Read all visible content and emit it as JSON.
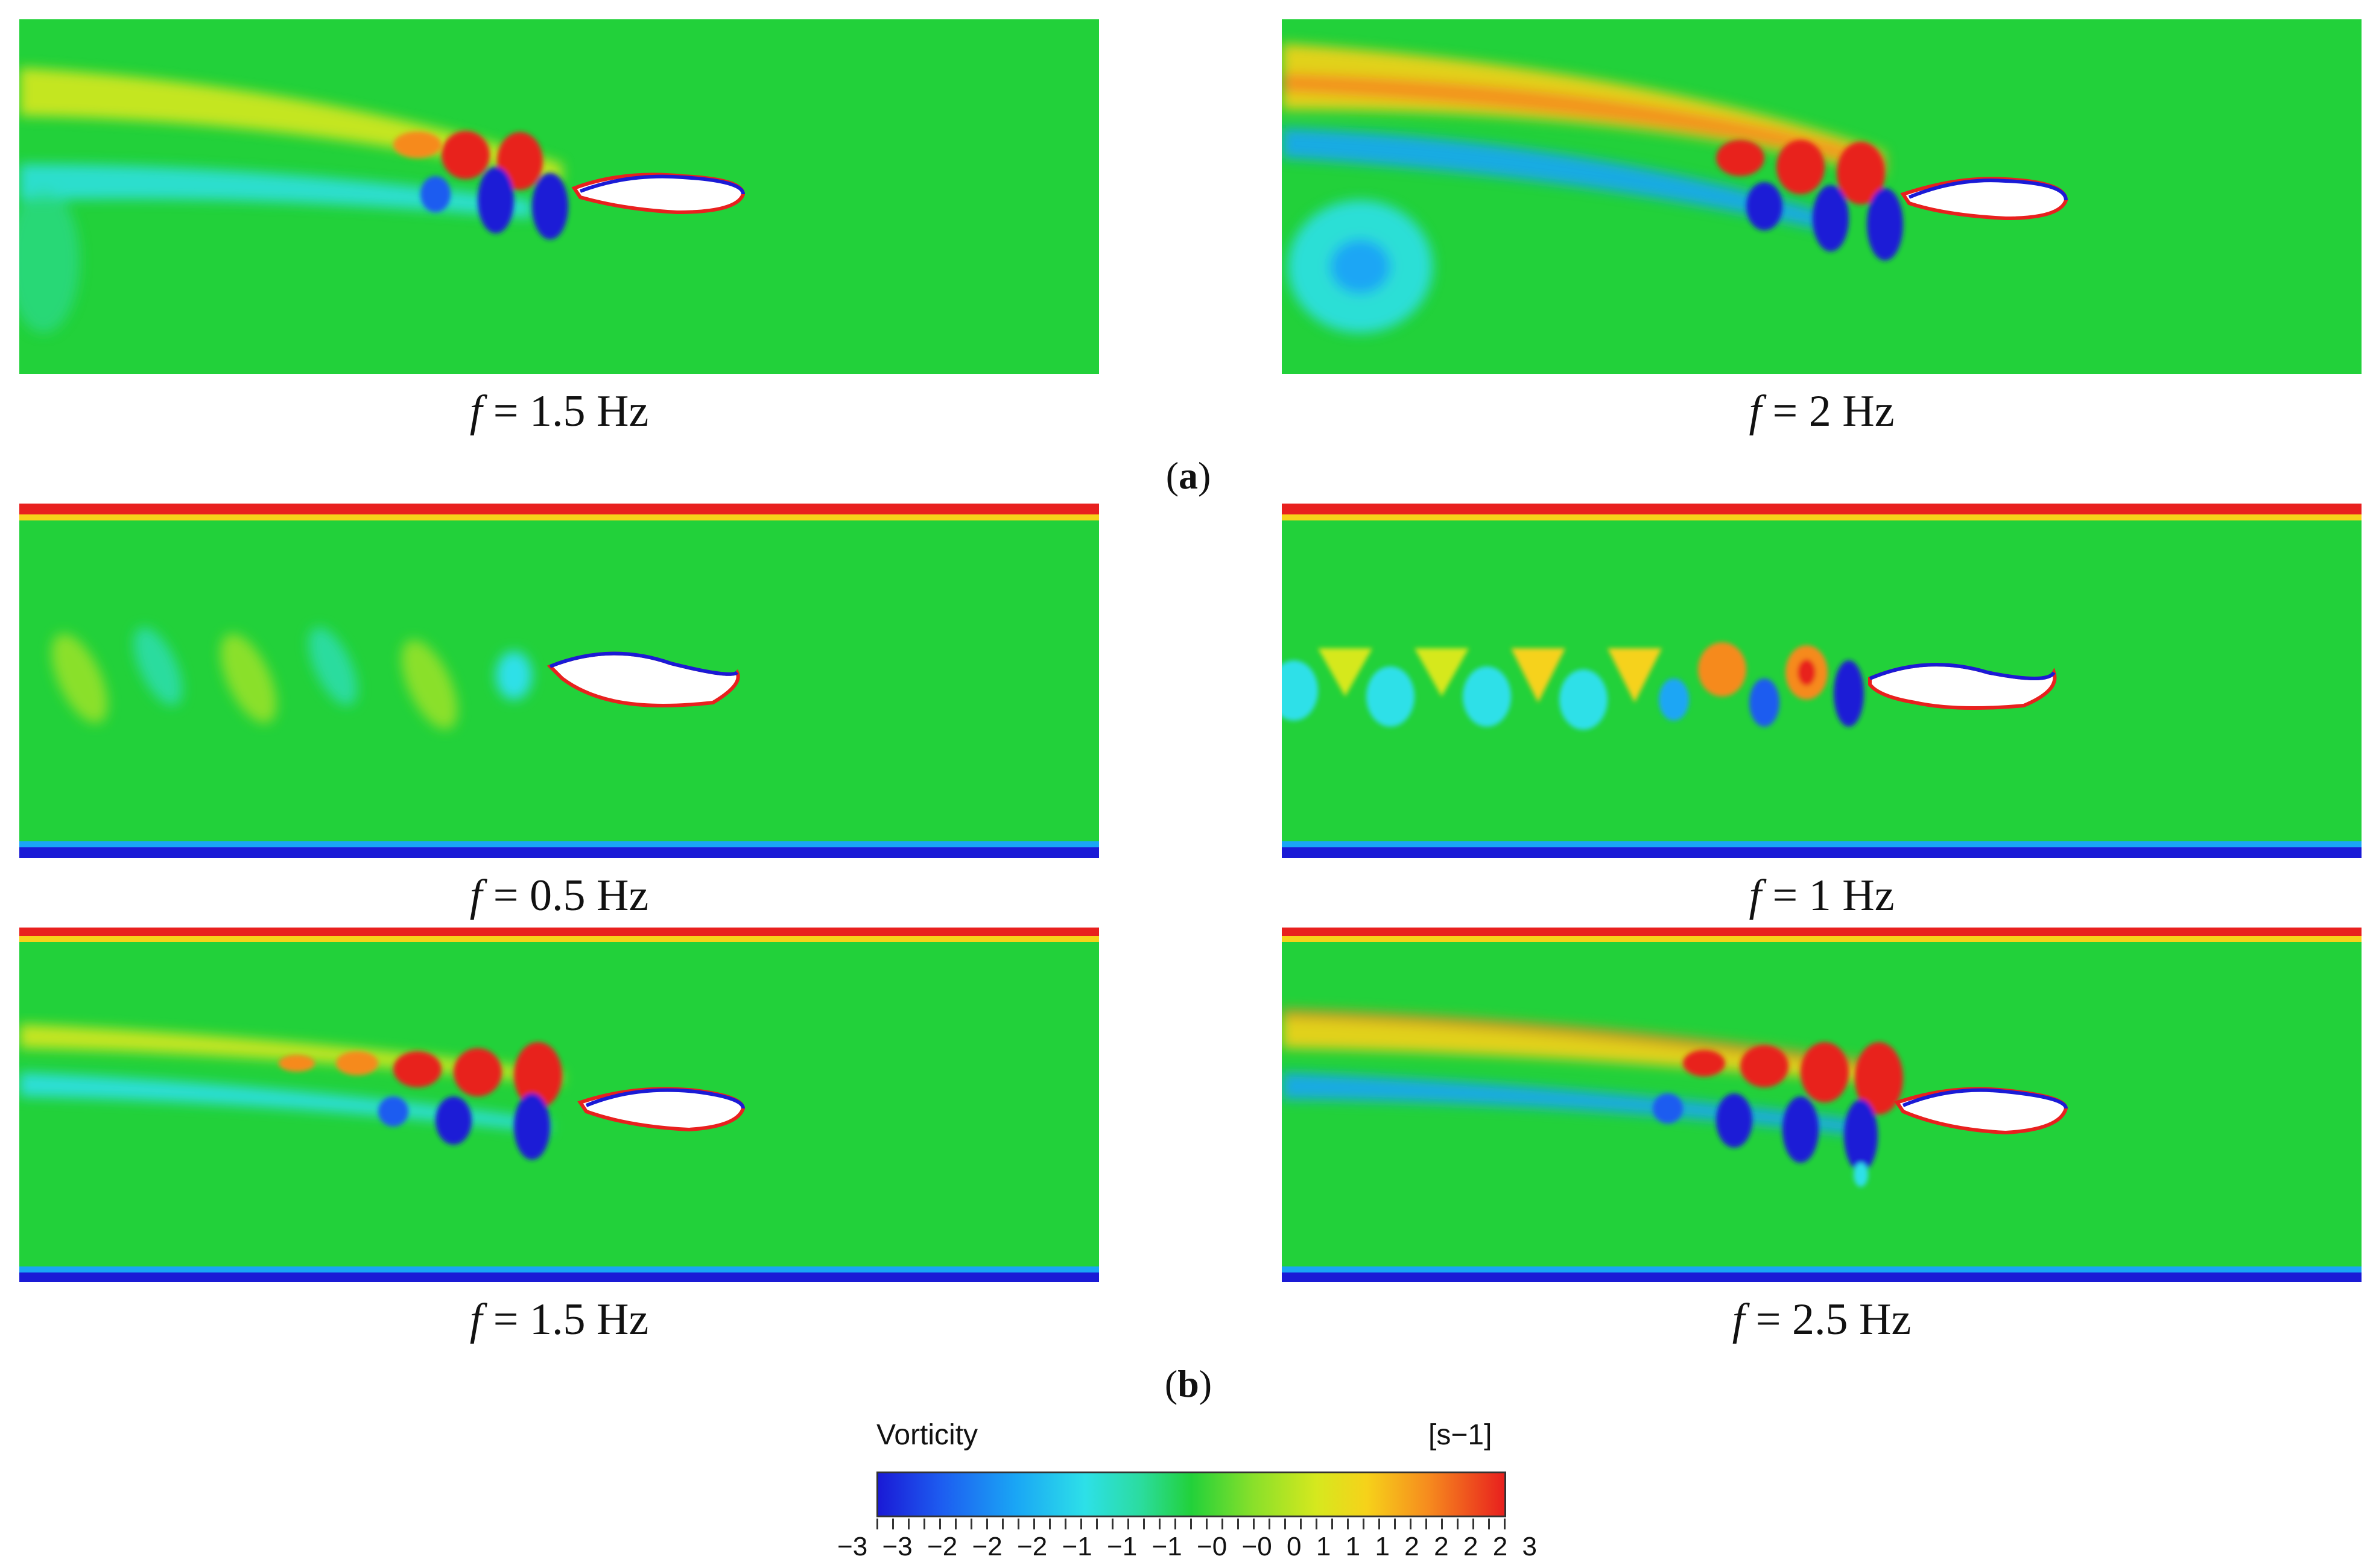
{
  "panels": [
    {
      "caption_var": "f",
      "caption_rest": " = 1.5 Hz"
    },
    {
      "caption_var": "f",
      "caption_rest": " = 2 Hz"
    },
    {
      "caption_var": "f",
      "caption_rest": " = 0.5 Hz"
    },
    {
      "caption_var": "f",
      "caption_rest": " = 1 Hz"
    },
    {
      "caption_var": "f",
      "caption_rest": " = 1.5 Hz"
    },
    {
      "caption_var": "f",
      "caption_rest": " = 2.5 Hz"
    }
  ],
  "subfigures": [
    {
      "open": "(",
      "letter": "a",
      "close": ")"
    },
    {
      "open": "(",
      "letter": "b",
      "close": ")"
    }
  ],
  "colorbar": {
    "title": "Vorticity",
    "unit": "[s−1]",
    "tick_labels": [
      "−3",
      "−3",
      "−2",
      "−2",
      "−2",
      "−1",
      "−1",
      "−1",
      "−0",
      "−0",
      "0",
      "1",
      "1",
      "1",
      "2",
      "2",
      "2",
      "2",
      "3"
    ],
    "colors": {
      "min": "#1a1ad6",
      "mid": "#22d13a",
      "max": "#e8201e"
    }
  }
}
